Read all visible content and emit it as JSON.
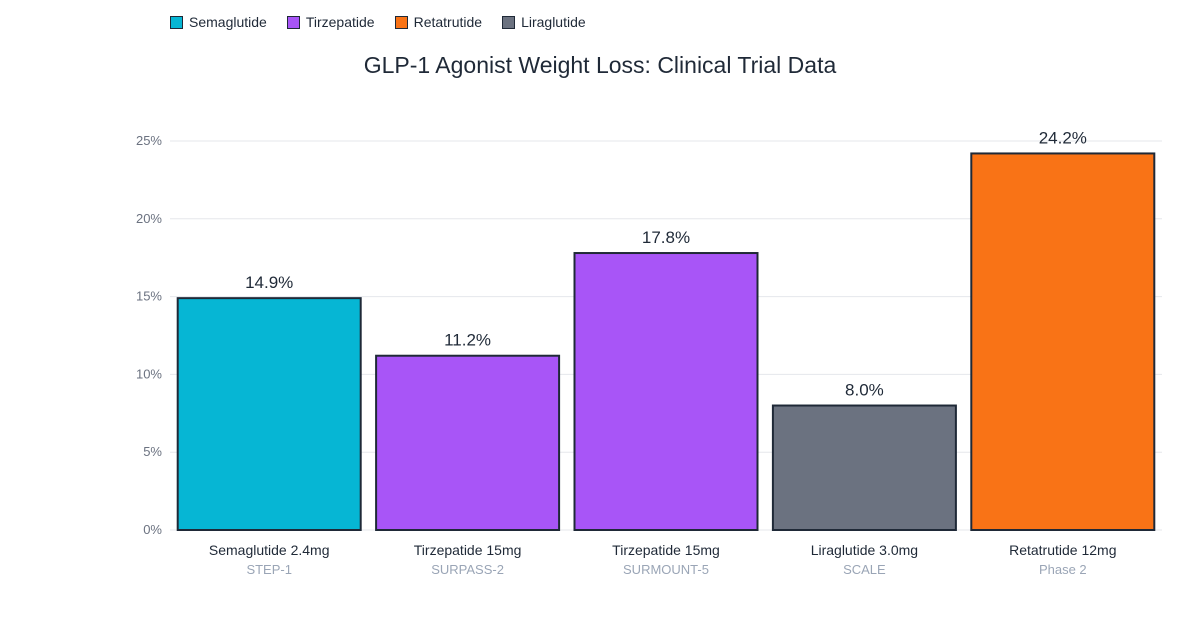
{
  "chart_data": {
    "type": "bar",
    "title": "GLP-1 Agonist Weight Loss: Clinical Trial Data",
    "xlabel": "",
    "ylabel": "",
    "ylim": [
      0,
      25
    ],
    "y_ticks": [
      "0%",
      "5%",
      "10%",
      "15%",
      "20%",
      "25%"
    ],
    "y_tick_values": [
      0,
      5,
      10,
      15,
      20,
      25
    ],
    "grid": true,
    "legend_position": "top-left",
    "legend": [
      {
        "name": "Semaglutide",
        "color": "#06b6d4"
      },
      {
        "name": "Tirzepatide",
        "color": "#a855f7"
      },
      {
        "name": "Retatrutide",
        "color": "#f97316"
      },
      {
        "name": "Liraglutide",
        "color": "#6b7280"
      }
    ],
    "categories": [
      "Semaglutide 2.4mg",
      "Tirzepatide 15mg",
      "Tirzepatide 15mg",
      "Liraglutide 3.0mg",
      "Retatrutide 12mg"
    ],
    "subcategories": [
      "STEP-1",
      "SURPASS-2",
      "SURMOUNT-5",
      "SCALE",
      "Phase 2"
    ],
    "values": [
      14.9,
      11.2,
      17.8,
      8.0,
      24.2
    ],
    "value_labels": [
      "14.9%",
      "11.2%",
      "17.8%",
      "8.0%",
      "24.2%"
    ],
    "bar_colors": [
      "#06b6d4",
      "#a855f7",
      "#a855f7",
      "#6b7280",
      "#f97316"
    ],
    "bar_outline": "#1f2937"
  }
}
